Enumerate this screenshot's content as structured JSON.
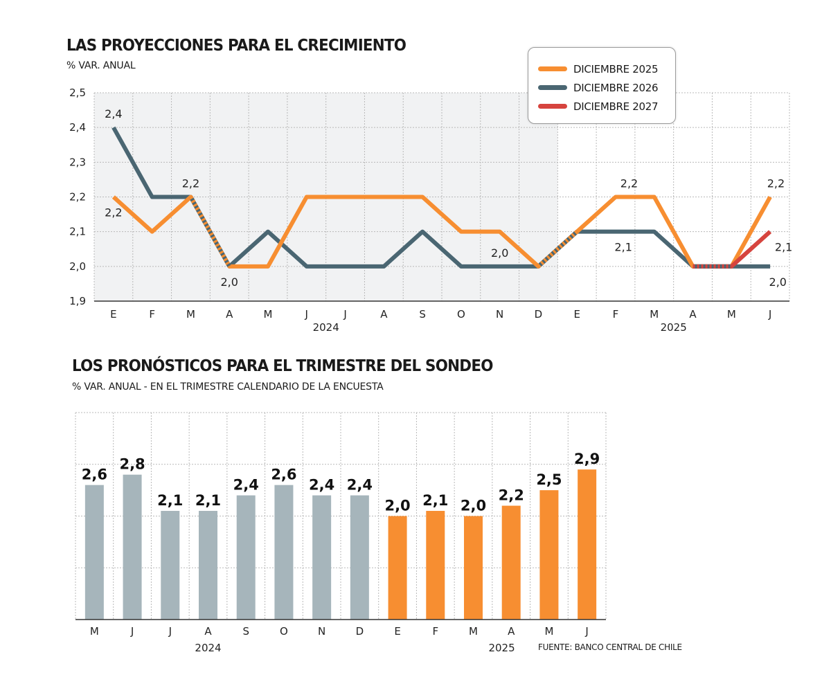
{
  "chart_data": [
    {
      "type": "line",
      "title": "LAS PROYECCIONES PARA EL CRECIMIENTO",
      "subtitle": "% VAR. ANUAL",
      "categories": [
        "E",
        "F",
        "M",
        "A",
        "M",
        "J",
        "J",
        "A",
        "S",
        "O",
        "N",
        "D",
        "E",
        "F",
        "M",
        "A",
        "M",
        "J"
      ],
      "year_labels": [
        {
          "label": "2024",
          "index": 5.5
        },
        {
          "label": "2025",
          "index": 14.5
        }
      ],
      "shaded_range": [
        0,
        11
      ],
      "ylim": [
        1.9,
        2.5
      ],
      "yticks": [
        "2,5",
        "2,4",
        "2,3",
        "2,2",
        "2,1",
        "2,0",
        "1,9"
      ],
      "ytick_values": [
        2.5,
        2.4,
        2.3,
        2.2,
        2.1,
        2.0,
        1.9
      ],
      "grid": true,
      "legend_position": "top-right",
      "series": [
        {
          "name": "DICIEMBRE 2025",
          "color": "#f78e31",
          "values": [
            2.2,
            2.1,
            2.2,
            2.0,
            2.0,
            2.2,
            2.2,
            2.2,
            2.2,
            2.1,
            2.1,
            2.0,
            2.1,
            2.2,
            2.2,
            2.0,
            2.0,
            2.2
          ]
        },
        {
          "name": "DICIEMBRE 2026",
          "color": "#4a6672",
          "values": [
            2.4,
            2.2,
            2.2,
            2.0,
            2.1,
            2.0,
            2.0,
            2.0,
            2.1,
            2.0,
            2.0,
            2.0,
            2.1,
            2.1,
            2.1,
            2.0,
            2.0,
            2.0
          ]
        },
        {
          "name": "DICIEMBRE 2027",
          "color": "#d6443e",
          "values": [
            null,
            null,
            null,
            null,
            null,
            null,
            null,
            null,
            null,
            null,
            null,
            null,
            null,
            null,
            null,
            2.0,
            2.0,
            2.1
          ]
        }
      ],
      "annotations": [
        {
          "text": "2,4",
          "index": 0,
          "value": 2.4,
          "pos": "above"
        },
        {
          "text": "2,2",
          "index": 0,
          "value": 2.2,
          "pos": "below"
        },
        {
          "text": "2,2",
          "index": 2,
          "value": 2.2,
          "pos": "above"
        },
        {
          "text": "2,0",
          "index": 3,
          "value": 2.0,
          "pos": "below"
        },
        {
          "text": "2,0",
          "index": 10,
          "value": 2.0,
          "pos": "above"
        },
        {
          "text": "2,2",
          "index": 13.35,
          "value": 2.2,
          "pos": "above"
        },
        {
          "text": "2,1",
          "index": 13.2,
          "value": 2.1,
          "pos": "below"
        },
        {
          "text": "2,2",
          "index": 17.15,
          "value": 2.2,
          "pos": "above"
        },
        {
          "text": "2,1",
          "index": 17.35,
          "value": 2.1,
          "pos": "below"
        },
        {
          "text": "2,0",
          "index": 17.2,
          "value": 2.0,
          "pos": "below"
        }
      ]
    },
    {
      "type": "bar",
      "title": "LOS PRONÓSTICOS PARA EL TRIMESTRE DEL SONDEO",
      "subtitle": "% VAR. ANUAL - EN EL TRIMESTRE CALENDARIO DE LA ENCUESTA",
      "categories": [
        "M",
        "J",
        "J",
        "A",
        "S",
        "O",
        "N",
        "D",
        "E",
        "F",
        "M",
        "A",
        "M",
        "J"
      ],
      "values": [
        2.6,
        2.8,
        2.1,
        2.1,
        2.4,
        2.6,
        2.4,
        2.4,
        2.0,
        2.1,
        2.0,
        2.2,
        2.5,
        2.9
      ],
      "value_labels": [
        "2,6",
        "2,8",
        "2,1",
        "2,1",
        "2,4",
        "2,6",
        "2,4",
        "2,4",
        "2,0",
        "2,1",
        "2,0",
        "2,2",
        "2,5",
        "2,9"
      ],
      "colors": [
        "#a6b5bb",
        "#a6b5bb",
        "#a6b5bb",
        "#a6b5bb",
        "#a6b5bb",
        "#a6b5bb",
        "#a6b5bb",
        "#a6b5bb",
        "#f78e31",
        "#f78e31",
        "#f78e31",
        "#f78e31",
        "#f78e31",
        "#f78e31"
      ],
      "year_labels": [
        {
          "label": "2024",
          "index": 3
        },
        {
          "label": "2025",
          "index": 10.75
        }
      ],
      "ylim": [
        0,
        4
      ],
      "grid": true
    }
  ],
  "source": "FUENTE: BANCO CENTRAL DE CHILE"
}
